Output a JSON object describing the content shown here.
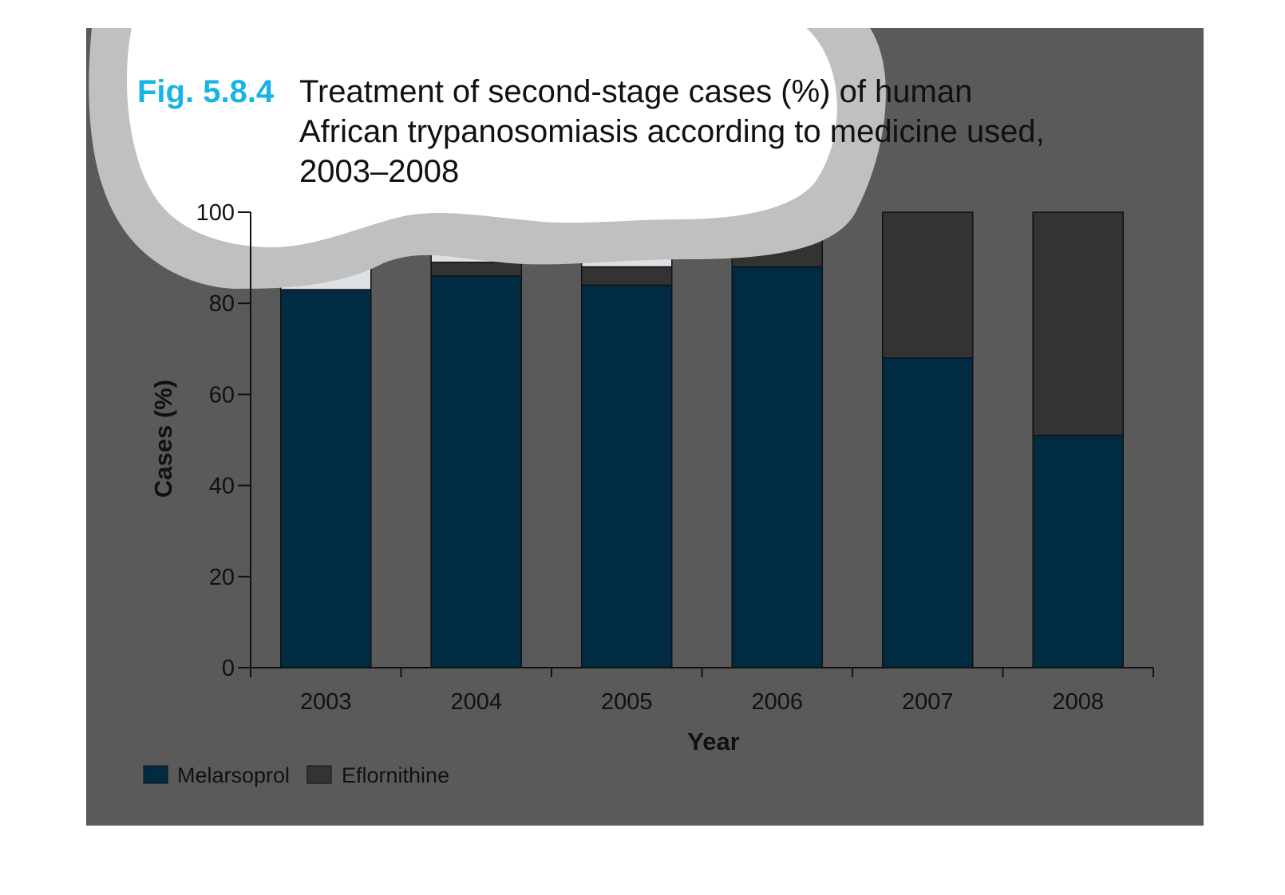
{
  "figure": {
    "label": "Fig. 5.8.4",
    "title_lines": [
      "Treatment of second-stage cases (%) of human",
      "African trypanosomiasis according to medicine used,",
      "2003–2008"
    ]
  },
  "colors": {
    "panel_background": "#5a5a5a",
    "melarsoprol": "#002b42",
    "eflornithine": "#333333",
    "other": "#dde1e6",
    "highlight_blob": "#ffffff",
    "highlight_ring": "#c0c0c0",
    "figure_label": "#19b4e6"
  },
  "chart_data": {
    "type": "bar",
    "stacked": true,
    "categories": [
      "2003",
      "2004",
      "2005",
      "2006",
      "2007",
      "2008"
    ],
    "series": [
      {
        "name": "Melarsoprol",
        "values": [
          83,
          86,
          84,
          88,
          68,
          51
        ]
      },
      {
        "name": "Eflornithine",
        "values": [
          0,
          3,
          4,
          12,
          32,
          49
        ]
      },
      {
        "values": [
          17,
          11,
          12,
          0,
          0,
          0
        ]
      }
    ],
    "xlabel": "Year",
    "ylabel": "Cases (%)",
    "ylim": [
      0,
      100
    ],
    "yticks": [
      "0",
      "20",
      "40",
      "60",
      "80",
      "100"
    ],
    "legend": {
      "placement": "bottom-left",
      "entries": [
        "Melarsoprol",
        "Eflornithine"
      ]
    }
  }
}
